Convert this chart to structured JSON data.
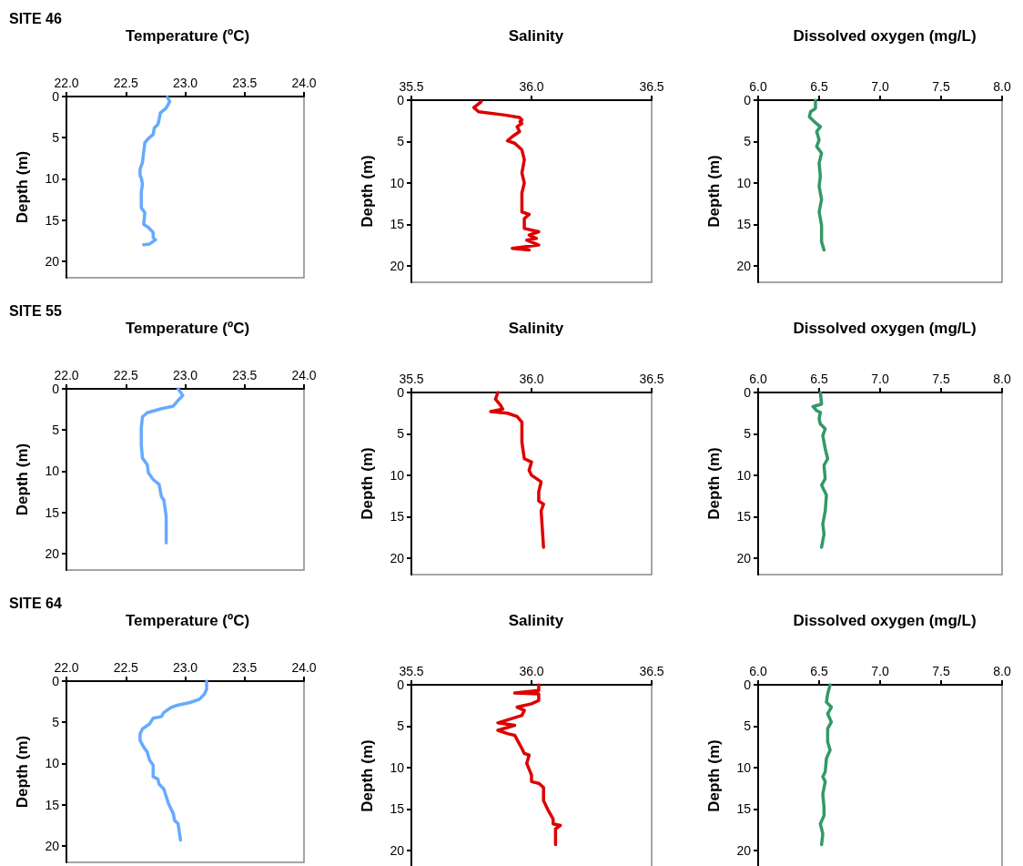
{
  "chart_data": [
    {
      "type": "line",
      "title": "Temperature (ºC)",
      "ylabel": "Depth (m)",
      "annotations": [
        "SITE 46"
      ],
      "xlim": [
        22,
        24
      ],
      "xticks": [
        {
          "value": 22,
          "label": "22.0"
        },
        {
          "value": 22.5,
          "label": "22.5"
        },
        {
          "value": 23,
          "label": "23.0"
        },
        {
          "value": 23.5,
          "label": "23.5"
        },
        {
          "value": 24,
          "label": "24.0"
        }
      ],
      "ylim": [
        22,
        0
      ],
      "yticks": [
        0,
        5,
        10,
        15,
        20
      ],
      "grid": false,
      "marker": "none",
      "line_style": "solid",
      "series": [
        {
          "color": "#66aaff",
          "x": [
            22.85,
            22.87,
            22.84,
            22.79,
            22.78,
            22.77,
            22.74,
            22.73,
            22.69,
            22.66,
            22.65,
            22.64,
            22.62,
            22.62,
            22.63,
            22.64,
            22.63,
            22.63,
            22.66,
            22.65,
            22.69,
            22.73,
            22.73,
            22.75,
            22.7,
            22.65
          ],
          "values": [
            0.1,
            0.6,
            1.4,
            2.0,
            2.8,
            3.4,
            3.8,
            4.6,
            5.1,
            5.6,
            6.8,
            8.0,
            8.8,
            9.6,
            9.9,
            10.6,
            11.6,
            13.5,
            14.1,
            15.5,
            15.9,
            16.5,
            17.1,
            17.4,
            17.9,
            18.0
          ]
        }
      ]
    },
    {
      "type": "line",
      "title": "Salinity",
      "ylabel": "Depth (m)",
      "xlim": [
        35.5,
        36.5
      ],
      "xticks": [
        {
          "value": 35.5,
          "label": "35.5"
        },
        {
          "value": 36,
          "label": "36.0"
        },
        {
          "value": 36.5,
          "label": "36.5"
        }
      ],
      "ylim": [
        22,
        0
      ],
      "yticks": [
        0,
        5,
        10,
        15,
        20
      ],
      "grid": false,
      "marker": "none",
      "line_style": "solid",
      "series": [
        {
          "color": "#dd0000",
          "x": [
            35.79,
            35.76,
            35.78,
            35.89,
            35.95,
            35.96,
            35.952,
            35.96,
            35.94,
            35.95,
            35.92,
            35.9,
            35.93,
            35.96,
            35.97,
            35.96,
            35.97,
            35.96,
            35.96,
            35.99,
            35.97,
            35.97,
            36.03,
            35.99,
            36.02,
            35.98,
            36.03,
            35.92,
            35.99
          ],
          "values": [
            0.2,
            0.9,
            1.4,
            1.8,
            2.1,
            2.4,
            2.6,
            2.8,
            3.2,
            3.8,
            4.4,
            4.9,
            5.2,
            6.0,
            7.2,
            8.8,
            10.0,
            11.2,
            13.5,
            13.8,
            14.3,
            15.5,
            15.9,
            16.3,
            16.7,
            16.9,
            17.5,
            17.9,
            18.1
          ]
        }
      ]
    },
    {
      "type": "line",
      "title": "Dissolved oxygen (mg/L)",
      "ylabel": "Depth (m)",
      "xlim": [
        6,
        8
      ],
      "xticks": [
        {
          "value": 6,
          "label": "6.0"
        },
        {
          "value": 6.5,
          "label": "6.5"
        },
        {
          "value": 7,
          "label": "7.0"
        },
        {
          "value": 7.5,
          "label": "7.5"
        },
        {
          "value": 8,
          "label": "8.0"
        }
      ],
      "ylim": [
        22,
        0
      ],
      "yticks": [
        0,
        5,
        10,
        15,
        20
      ],
      "grid": false,
      "marker": "none",
      "line_style": "solid",
      "series": [
        {
          "color": "#339966",
          "x": [
            6.47,
            6.47,
            6.43,
            6.42,
            6.46,
            6.51,
            6.48,
            6.5,
            6.48,
            6.52,
            6.5,
            6.51,
            6.5,
            6.52,
            6.5,
            6.52,
            6.52,
            6.54
          ],
          "values": [
            0,
            1.0,
            1.4,
            2.0,
            2.6,
            3.2,
            3.8,
            4.8,
            5.6,
            6.4,
            7.6,
            9.2,
            10.4,
            12.0,
            13.5,
            15.1,
            17.1,
            18.1
          ]
        }
      ]
    },
    {
      "type": "line",
      "title": "Temperature (ºC)",
      "ylabel": "Depth (m)",
      "annotations": [
        "SITE 55"
      ],
      "xlim": [
        22,
        24
      ],
      "xticks": [
        {
          "value": 22,
          "label": "22.0"
        },
        {
          "value": 22.5,
          "label": "22.5"
        },
        {
          "value": 23,
          "label": "23.0"
        },
        {
          "value": 23.5,
          "label": "23.5"
        },
        {
          "value": 24,
          "label": "24.0"
        }
      ],
      "ylim": [
        22,
        0
      ],
      "yticks": [
        0,
        5,
        10,
        15,
        20
      ],
      "grid": false,
      "marker": "none",
      "line_style": "solid",
      "series": [
        {
          "color": "#66aaff",
          "x": [
            22.94,
            22.98,
            22.94,
            22.9,
            22.8,
            22.68,
            22.64,
            22.63,
            22.63,
            22.64,
            22.68,
            22.69,
            22.73,
            22.78,
            22.8,
            22.82,
            22.84,
            22.84
          ],
          "values": [
            0,
            0.8,
            1.4,
            2.1,
            2.4,
            2.9,
            3.4,
            4.8,
            6.8,
            8.4,
            9.2,
            10.2,
            11.0,
            11.6,
            13.1,
            13.5,
            15.5,
            18.7
          ]
        }
      ]
    },
    {
      "type": "line",
      "title": "Salinity",
      "ylabel": "Depth (m)",
      "xlim": [
        35.5,
        36.5
      ],
      "xticks": [
        {
          "value": 35.5,
          "label": "35.5"
        },
        {
          "value": 36,
          "label": "36.0"
        },
        {
          "value": 36.5,
          "label": "36.5"
        }
      ],
      "ylim": [
        22,
        0
      ],
      "yticks": [
        0,
        5,
        10,
        15,
        20
      ],
      "grid": false,
      "marker": "none",
      "line_style": "solid",
      "series": [
        {
          "color": "#dd0000",
          "x": [
            35.86,
            35.85,
            35.87,
            35.88,
            35.83,
            35.9,
            35.94,
            35.96,
            35.96,
            35.97,
            36.0,
            35.99,
            36.0,
            36.04,
            36.03,
            36.03,
            36.05,
            36.04,
            36.05
          ],
          "values": [
            0,
            0.8,
            1.5,
            2.0,
            2.3,
            2.5,
            2.9,
            3.6,
            6.0,
            8.0,
            8.4,
            9.4,
            10.0,
            10.8,
            12.0,
            13.1,
            13.5,
            14.3,
            18.7
          ]
        }
      ]
    },
    {
      "type": "line",
      "title": "Dissolved oxygen (mg/L)",
      "ylabel": "Depth (m)",
      "xlim": [
        6,
        8
      ],
      "xticks": [
        {
          "value": 6,
          "label": "6.0"
        },
        {
          "value": 6.5,
          "label": "6.5"
        },
        {
          "value": 7,
          "label": "7.0"
        },
        {
          "value": 7.5,
          "label": "7.5"
        },
        {
          "value": 8,
          "label": "8.0"
        }
      ],
      "ylim": [
        22,
        0
      ],
      "yticks": [
        0,
        5,
        10,
        15,
        20
      ],
      "grid": false,
      "marker": "none",
      "line_style": "solid",
      "series": [
        {
          "color": "#339966",
          "x": [
            6.51,
            6.52,
            6.45,
            6.48,
            6.51,
            6.5,
            6.51,
            6.55,
            6.53,
            6.55,
            6.57,
            6.54,
            6.55,
            6.52,
            6.56,
            6.55,
            6.53,
            6.54,
            6.52
          ],
          "values": [
            0,
            1.4,
            1.7,
            2.2,
            2.4,
            3.2,
            3.8,
            4.4,
            5.2,
            6.8,
            8.0,
            8.8,
            10.4,
            11.2,
            12.4,
            14.3,
            15.9,
            17.1,
            18.7
          ]
        }
      ]
    },
    {
      "type": "line",
      "title": "Temperature (ºC)",
      "ylabel": "Depth (m)",
      "annotations": [
        "SITE 64"
      ],
      "xlim": [
        22,
        24
      ],
      "xticks": [
        {
          "value": 22,
          "label": "22.0"
        },
        {
          "value": 22.5,
          "label": "22.5"
        },
        {
          "value": 23,
          "label": "23.0"
        },
        {
          "value": 23.5,
          "label": "23.5"
        },
        {
          "value": 24,
          "label": "24.0"
        }
      ],
      "ylim": [
        22,
        0
      ],
      "yticks": [
        0,
        5,
        10,
        15,
        20
      ],
      "grid": false,
      "marker": "none",
      "line_style": "solid",
      "series": [
        {
          "color": "#66aaff",
          "x": [
            23.18,
            23.18,
            23.16,
            23.12,
            23.04,
            22.94,
            22.88,
            22.82,
            22.8,
            22.73,
            22.7,
            22.64,
            22.62,
            22.62,
            22.65,
            22.68,
            22.7,
            22.73,
            22.73,
            22.77,
            22.78,
            22.82,
            22.86,
            22.9,
            22.91,
            22.94,
            22.96
          ],
          "values": [
            0,
            1.0,
            1.6,
            2.2,
            2.6,
            2.9,
            3.2,
            3.8,
            4.3,
            4.5,
            5.2,
            5.8,
            6.4,
            7.2,
            8.0,
            8.6,
            9.6,
            10.2,
            11.6,
            11.9,
            12.5,
            13.1,
            14.9,
            16.1,
            16.9,
            17.3,
            19.3
          ]
        }
      ]
    },
    {
      "type": "line",
      "title": "Salinity",
      "ylabel": "Depth (m)",
      "xlim": [
        35.5,
        36.5
      ],
      "xticks": [
        {
          "value": 35.5,
          "label": "35.5"
        },
        {
          "value": 36,
          "label": "36.0"
        },
        {
          "value": 36.5,
          "label": "36.5"
        }
      ],
      "ylim": [
        22,
        0
      ],
      "yticks": [
        0,
        5,
        10,
        15,
        20
      ],
      "grid": false,
      "marker": "none",
      "line_style": "solid",
      "series": [
        {
          "color": "#dd0000",
          "x": [
            36.03,
            36.03,
            35.93,
            36.03,
            36.03,
            36.0,
            35.94,
            35.97,
            35.96,
            35.86,
            35.93,
            35.86,
            35.9,
            35.93,
            35.96,
            35.97,
            35.99,
            35.98,
            36.0,
            36.0,
            36.03,
            36.05,
            36.05,
            36.07,
            36.09,
            36.09,
            36.12,
            36.1,
            36.1
          ],
          "values": [
            0,
            0.7,
            1.0,
            1.1,
            1.9,
            2.3,
            2.7,
            3.1,
            3.7,
            4.6,
            4.9,
            5.5,
            5.9,
            6.1,
            7.7,
            8.3,
            8.5,
            9.5,
            10.9,
            11.7,
            11.9,
            12.4,
            14.0,
            15.2,
            16.2,
            16.8,
            17.0,
            17.4,
            19.3
          ]
        }
      ]
    },
    {
      "type": "line",
      "title": "Dissolved oxygen (mg/L)",
      "ylabel": "Depth (m)",
      "xlim": [
        6,
        8
      ],
      "xticks": [
        {
          "value": 6,
          "label": "6.0"
        },
        {
          "value": 6.5,
          "label": "6.5"
        },
        {
          "value": 7,
          "label": "7.0"
        },
        {
          "value": 7.5,
          "label": "7.5"
        },
        {
          "value": 8,
          "label": "8.0"
        }
      ],
      "ylim": [
        22,
        0
      ],
      "yticks": [
        0,
        5,
        10,
        15,
        20
      ],
      "grid": false,
      "marker": "none",
      "line_style": "solid",
      "series": [
        {
          "color": "#339966",
          "x": [
            6.59,
            6.57,
            6.56,
            6.6,
            6.57,
            6.6,
            6.57,
            6.57,
            6.59,
            6.56,
            6.55,
            6.53,
            6.55,
            6.53,
            6.54,
            6.54,
            6.51,
            6.53,
            6.52
          ],
          "values": [
            0,
            1.1,
            2.1,
            2.7,
            3.5,
            4.5,
            5.3,
            6.9,
            7.9,
            8.9,
            10.5,
            11.1,
            11.7,
            13.2,
            14.8,
            15.8,
            16.8,
            18.0,
            19.3
          ]
        }
      ]
    }
  ]
}
